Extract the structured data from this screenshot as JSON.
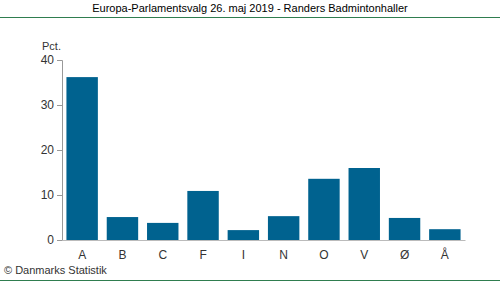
{
  "chart_data": {
    "type": "bar",
    "title": "Europa-Parlamentsvalg 26. maj 2019 - Randers Badmintonhaller",
    "ylabel": "Pct.",
    "annotations": [
      "© Danmarks Statistik"
    ],
    "categories": [
      "A",
      "B",
      "C",
      "F",
      "I",
      "N",
      "O",
      "V",
      "Ø",
      "Å"
    ],
    "values": [
      36.2,
      5.1,
      3.8,
      10.9,
      2.2,
      5.3,
      13.6,
      16.0,
      4.9,
      2.4
    ],
    "color": "#00628f",
    "ylim": [
      0,
      40
    ],
    "yticks": [
      0,
      10,
      20,
      30,
      40
    ],
    "grid": false
  }
}
